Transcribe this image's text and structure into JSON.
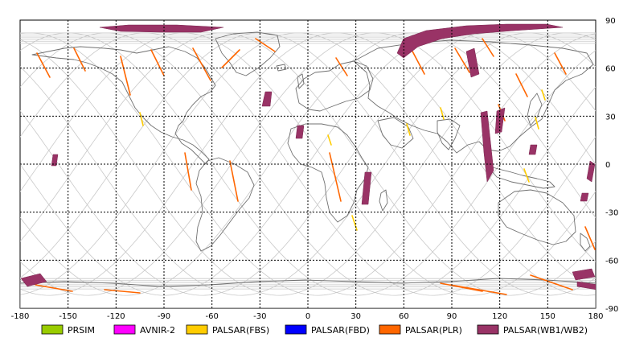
{
  "map": {
    "x_ticks": [
      "-180",
      "-150",
      "-120",
      "-90",
      "-60",
      "-30",
      "0",
      "30",
      "60",
      "90",
      "120",
      "150",
      "180"
    ],
    "y_ticks": [
      "90",
      "60",
      "30",
      "0",
      "-30",
      "-60",
      "-90"
    ],
    "lon_range": [
      -180,
      180
    ],
    "lat_range": [
      -90,
      90
    ],
    "grid": "dashed",
    "land_outline_color": "#707070",
    "orbit_track_color": "#c0c0c0"
  },
  "legend": [
    {
      "label": "PRSIM",
      "color": "#99cc00"
    },
    {
      "label": "AVNIR-2",
      "color": "#ff00ff"
    },
    {
      "label": "PALSAR(FBS)",
      "color": "#ffcc00"
    },
    {
      "label": "PALSAR(FBD)",
      "color": "#0000ff"
    },
    {
      "label": "PALSAR(PLR)",
      "color": "#ff6600"
    },
    {
      "label": "PALSAR(WB1/WB2)",
      "color": "#993366"
    }
  ]
}
